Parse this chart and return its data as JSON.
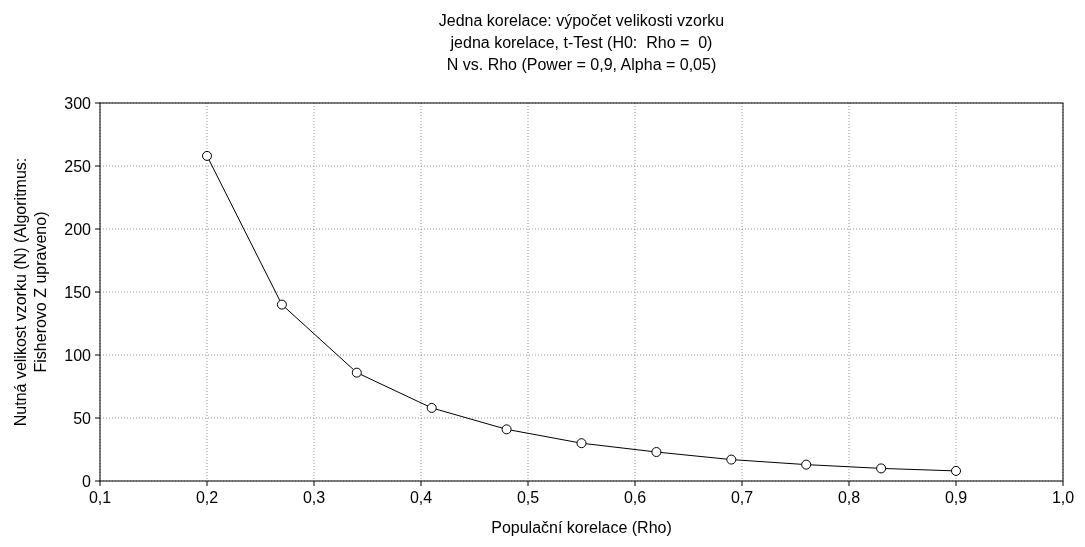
{
  "chart_data": {
    "type": "line",
    "title": "Jedna korelace: výpočet velikosti vzorku",
    "subtitle": "jedna korelace, t-Test (H0:  Rho =  0)\nN vs. Rho (Power = 0,9, Alpha = 0,05)",
    "xlabel": "Populační korelace (Rho)",
    "ylabel": "Nutná velikost vzorku (N) (Algoritmus: Fisherovo Z upraveno)",
    "x": [
      0.2,
      0.27,
      0.34,
      0.41,
      0.48,
      0.55,
      0.62,
      0.69,
      0.76,
      0.83,
      0.9
    ],
    "series": [
      {
        "color": "#000000",
        "values": [
          258,
          140,
          86,
          58,
          41,
          30,
          23,
          17,
          13,
          10,
          8
        ]
      }
    ],
    "xlim": [
      0.1,
      1.0
    ],
    "xticks": [
      {
        "value": 0.1,
        "label": "0,1"
      },
      {
        "value": 0.2,
        "label": "0,2"
      },
      {
        "value": 0.3,
        "label": "0,3"
      },
      {
        "value": 0.4,
        "label": "0,4"
      },
      {
        "value": 0.5,
        "label": "0,5"
      },
      {
        "value": 0.6,
        "label": "0,6"
      },
      {
        "value": 0.7,
        "label": "0,7"
      },
      {
        "value": 0.8,
        "label": "0,8"
      },
      {
        "value": 0.9,
        "label": "0,9"
      },
      {
        "value": 1.0,
        "label": "1,0"
      }
    ],
    "ylim": [
      0,
      300
    ],
    "yticks": [
      0,
      50,
      100,
      150,
      200,
      250,
      300
    ],
    "grid": true,
    "marker": "circle",
    "line_style": "solid"
  }
}
